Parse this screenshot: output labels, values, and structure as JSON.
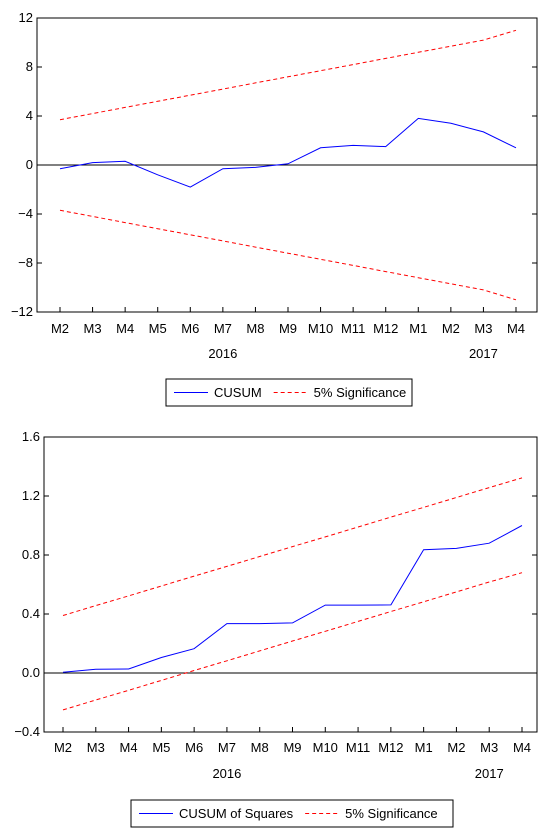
{
  "chart_data": [
    {
      "type": "line",
      "categories": [
        "M2",
        "M3",
        "M4",
        "M5",
        "M6",
        "M7",
        "M8",
        "M9",
        "M10",
        "M11",
        "M12",
        "M1",
        "M2",
        "M3",
        "M4"
      ],
      "year_labels": [
        {
          "label": "2016",
          "at_category_index": 5
        },
        {
          "label": "2017",
          "at_category_index": 13
        }
      ],
      "ylim": [
        -12,
        12
      ],
      "yticks": [
        "12",
        "8",
        "4",
        "0",
        "−4",
        "−8",
        "−12"
      ],
      "ytick_values": [
        12,
        8,
        4,
        0,
        -4,
        -8,
        -12
      ],
      "zero_line": true,
      "series": [
        {
          "name": "CUSUM",
          "color": "#0000ff",
          "style": "solid",
          "values": [
            -0.3,
            0.2,
            0.3,
            -0.8,
            -1.8,
            -0.3,
            -0.2,
            0.1,
            1.4,
            1.6,
            1.5,
            3.8,
            3.4,
            2.7,
            1.4
          ]
        },
        {
          "name": "5% Significance",
          "color": "#ff0000",
          "style": "dashed",
          "values": [
            3.7,
            4.2,
            4.7,
            5.2,
            5.7,
            6.2,
            6.7,
            7.2,
            7.7,
            8.2,
            8.7,
            9.2,
            9.7,
            10.2,
            11.0
          ]
        },
        {
          "name": "",
          "color": "#ff0000",
          "style": "dashed",
          "legend": false,
          "values": [
            -3.7,
            -4.2,
            -4.7,
            -5.2,
            -5.7,
            -6.2,
            -6.7,
            -7.2,
            -7.7,
            -8.2,
            -8.7,
            -9.2,
            -9.7,
            -10.2,
            -11.0
          ]
        }
      ],
      "legend": {
        "placement": "bottom-center",
        "items": [
          "CUSUM",
          "5% Significance"
        ]
      }
    },
    {
      "type": "line",
      "categories": [
        "M2",
        "M3",
        "M4",
        "M5",
        "M6",
        "M7",
        "M8",
        "M9",
        "M10",
        "M11",
        "M12",
        "M1",
        "M2",
        "M3",
        "M4"
      ],
      "year_labels": [
        {
          "label": "2016",
          "at_category_index": 5
        },
        {
          "label": "2017",
          "at_category_index": 13
        }
      ],
      "ylim": [
        -0.4,
        1.6
      ],
      "yticks": [
        "1.6",
        "1.2",
        "0.8",
        "0.4",
        "0.0",
        "−0.4"
      ],
      "ytick_values": [
        1.6,
        1.2,
        0.8,
        0.4,
        0.0,
        -0.4
      ],
      "zero_line": true,
      "series": [
        {
          "name": "CUSUM of Squares",
          "color": "#0000ff",
          "style": "solid",
          "values": [
            0.005,
            0.025,
            0.027,
            0.105,
            0.165,
            0.335,
            0.335,
            0.34,
            0.46,
            0.46,
            0.462,
            0.835,
            0.845,
            0.88,
            1.0
          ]
        },
        {
          "name": "5% Significance",
          "color": "#ff0000",
          "style": "dashed",
          "values": [
            0.39,
            0.457,
            0.523,
            0.59,
            0.657,
            0.723,
            0.79,
            0.857,
            0.923,
            0.99,
            1.057,
            1.123,
            1.19,
            1.257,
            1.323
          ]
        },
        {
          "name": "",
          "color": "#ff0000",
          "style": "dashed",
          "legend": false,
          "values": [
            -0.25,
            -0.183,
            -0.117,
            -0.05,
            0.017,
            0.083,
            0.15,
            0.217,
            0.283,
            0.35,
            0.417,
            0.483,
            0.55,
            0.617,
            0.68
          ]
        }
      ],
      "legend": {
        "placement": "bottom-center",
        "items": [
          "CUSUM of Squares",
          "5% Significance"
        ]
      }
    }
  ]
}
